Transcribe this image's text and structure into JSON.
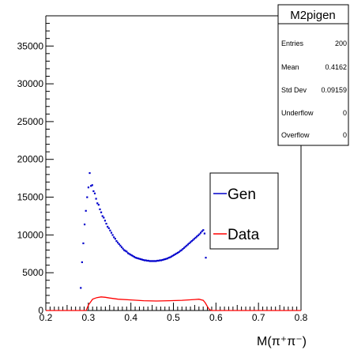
{
  "chart_data": {
    "type": "histogram",
    "title": "M2pigen",
    "xlabel": "M(π⁺π⁻)",
    "ylabel": "",
    "xlim": [
      0.2,
      0.8
    ],
    "ylim": [
      0,
      39000
    ],
    "x_ticks": [
      "0.2",
      "0.3",
      "0.4",
      "0.5",
      "0.6",
      "0.7",
      "0.8"
    ],
    "y_ticks": [
      "0",
      "5000",
      "10000",
      "15000",
      "20000",
      "25000",
      "30000",
      "35000"
    ],
    "grid": false,
    "stats": {
      "title": "M2pigen",
      "rows": [
        {
          "label": "Entries",
          "value": "200"
        },
        {
          "label": "Mean",
          "value": "0.4162"
        },
        {
          "label": "Std Dev",
          "value": "0.09159"
        },
        {
          "label": "Underflow",
          "value": "0"
        },
        {
          "label": "Overflow",
          "value": "0"
        }
      ]
    },
    "legend": {
      "placement": "right-middle"
    },
    "series": [
      {
        "name": "Gen",
        "color": "#0000cc",
        "style": "markers",
        "x": [
          0.279,
          0.282,
          0.285,
          0.288,
          0.291,
          0.294,
          0.297,
          0.3,
          0.303,
          0.306,
          0.309,
          0.312,
          0.315,
          0.318,
          0.321,
          0.324,
          0.327,
          0.33,
          0.333,
          0.336,
          0.339,
          0.342,
          0.345,
          0.348,
          0.351,
          0.354,
          0.357,
          0.36,
          0.363,
          0.366,
          0.369,
          0.372,
          0.375,
          0.378,
          0.381,
          0.384,
          0.387,
          0.39,
          0.393,
          0.396,
          0.399,
          0.402,
          0.405,
          0.408,
          0.411,
          0.414,
          0.417,
          0.42,
          0.423,
          0.426,
          0.429,
          0.432,
          0.435,
          0.438,
          0.441,
          0.444,
          0.447,
          0.45,
          0.453,
          0.456,
          0.459,
          0.462,
          0.465,
          0.468,
          0.471,
          0.474,
          0.477,
          0.48,
          0.483,
          0.486,
          0.489,
          0.492,
          0.495,
          0.498,
          0.501,
          0.504,
          0.507,
          0.51,
          0.513,
          0.516,
          0.519,
          0.522,
          0.525,
          0.528,
          0.531,
          0.534,
          0.537,
          0.54,
          0.543,
          0.546,
          0.549,
          0.552,
          0.555,
          0.558,
          0.561,
          0.564,
          0.567,
          0.57,
          0.573,
          0.576,
          0.579,
          0.582
        ],
        "y": [
          0,
          3000,
          6400,
          8900,
          11400,
          13200,
          15000,
          16300,
          18200,
          16500,
          16600,
          15800,
          15500,
          14800,
          14200,
          14000,
          13400,
          13000,
          12500,
          12300,
          11900,
          11500,
          11100,
          10900,
          10600,
          10300,
          10000,
          9700,
          9500,
          9200,
          9000,
          8800,
          8600,
          8400,
          8200,
          8000,
          7900,
          7800,
          7600,
          7500,
          7400,
          7300,
          7200,
          7100,
          7000,
          6950,
          6900,
          6850,
          6800,
          6750,
          6700,
          6650,
          6650,
          6600,
          6600,
          6550,
          6550,
          6550,
          6550,
          6550,
          6550,
          6600,
          6600,
          6650,
          6650,
          6700,
          6750,
          6800,
          6850,
          6900,
          7000,
          7050,
          7150,
          7250,
          7350,
          7450,
          7550,
          7650,
          7750,
          7900,
          8000,
          8150,
          8300,
          8450,
          8600,
          8750,
          8900,
          9050,
          9200,
          9350,
          9500,
          9650,
          9800,
          9950,
          10100,
          10300,
          10500,
          10650,
          10200,
          7000,
          0,
          0
        ]
      },
      {
        "name": "Data",
        "color": "#ff0000",
        "style": "line",
        "x": [
          0.2,
          0.25,
          0.28,
          0.29,
          0.295,
          0.3,
          0.31,
          0.32,
          0.33,
          0.34,
          0.35,
          0.37,
          0.4,
          0.43,
          0.46,
          0.49,
          0.52,
          0.55,
          0.56,
          0.57,
          0.575,
          0.58,
          0.585,
          0.59,
          0.62,
          0.7,
          0.8
        ],
        "y": [
          0,
          0,
          0,
          0,
          0,
          700,
          1500,
          1700,
          1800,
          1750,
          1650,
          1500,
          1400,
          1300,
          1250,
          1300,
          1350,
          1450,
          1500,
          1350,
          1000,
          500,
          100,
          0,
          0,
          0,
          0
        ]
      }
    ]
  }
}
